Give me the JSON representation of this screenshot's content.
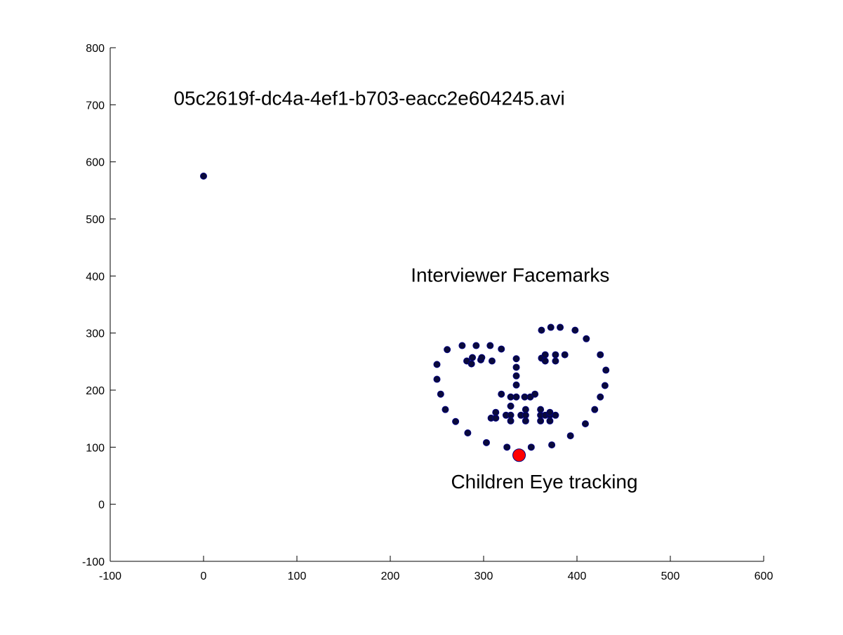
{
  "chart_data": {
    "type": "scatter",
    "title": "",
    "xlabel": "",
    "ylabel": "",
    "xlim": [
      -100,
      600
    ],
    "ylim": [
      -100,
      800
    ],
    "xticks": [
      -100,
      0,
      100,
      200,
      300,
      400,
      500,
      600
    ],
    "yticks": [
      -100,
      0,
      100,
      200,
      300,
      400,
      500,
      600,
      700,
      800
    ],
    "grid": false,
    "annotations": [
      {
        "id": "filename",
        "text": "05c2619f-dc4a-4ef1-b703-eacc2e604245.avi",
        "x": -32,
        "y": 700
      },
      {
        "id": "facemarks",
        "text": "Interviewer Facemarks",
        "x": 222,
        "y": 390
      },
      {
        "id": "eyetracking",
        "text": "Children Eye tracking",
        "x": 265,
        "y": 28
      }
    ],
    "series": [
      {
        "color": "#0a0a3a",
        "edge": "#000080",
        "marker": "dot",
        "points": [
          [
            0,
            575
          ],
          [
            250,
            245
          ],
          [
            250,
            219
          ],
          [
            254,
            193
          ],
          [
            259,
            166
          ],
          [
            270,
            145
          ],
          [
            283,
            125
          ],
          [
            303,
            108
          ],
          [
            325,
            100
          ],
          [
            351,
            100
          ],
          [
            373,
            104
          ],
          [
            393,
            120
          ],
          [
            409,
            141
          ],
          [
            419,
            166
          ],
          [
            425,
            188
          ],
          [
            430,
            208
          ],
          [
            431,
            235
          ],
          [
            425,
            262
          ],
          [
            410,
            290
          ],
          [
            398,
            305
          ],
          [
            382,
            310
          ],
          [
            372,
            310
          ],
          [
            362,
            305
          ],
          [
            261,
            271
          ],
          [
            277,
            278
          ],
          [
            292,
            278
          ],
          [
            307,
            278
          ],
          [
            319,
            272
          ],
          [
            282,
            251
          ],
          [
            287,
            246
          ],
          [
            288,
            257
          ],
          [
            297,
            253
          ],
          [
            298,
            257
          ],
          [
            309,
            251
          ],
          [
            335,
            255
          ],
          [
            335,
            240
          ],
          [
            335,
            225
          ],
          [
            335,
            209
          ],
          [
            335,
            188
          ],
          [
            319,
            193
          ],
          [
            329,
            188
          ],
          [
            344,
            188
          ],
          [
            350,
            188
          ],
          [
            355,
            193
          ],
          [
            329,
            172
          ],
          [
            340,
            156
          ],
          [
            362,
            256
          ],
          [
            366,
            251
          ],
          [
            366,
            262
          ],
          [
            377,
            251
          ],
          [
            377,
            262
          ],
          [
            387,
            262
          ],
          [
            308,
            151
          ],
          [
            313,
            151
          ],
          [
            313,
            161
          ],
          [
            324,
            156
          ],
          [
            329,
            156
          ],
          [
            329,
            146
          ],
          [
            345,
            146
          ],
          [
            345,
            156
          ],
          [
            345,
            166
          ],
          [
            361,
            146
          ],
          [
            361,
            156
          ],
          [
            361,
            166
          ],
          [
            366,
            156
          ],
          [
            371,
            146
          ],
          [
            371,
            156
          ],
          [
            371,
            161
          ],
          [
            377,
            156
          ]
        ]
      },
      {
        "color": "#ff0000",
        "edge": "#000080",
        "marker": "large-dot",
        "points": [
          [
            338,
            86
          ]
        ]
      }
    ]
  }
}
